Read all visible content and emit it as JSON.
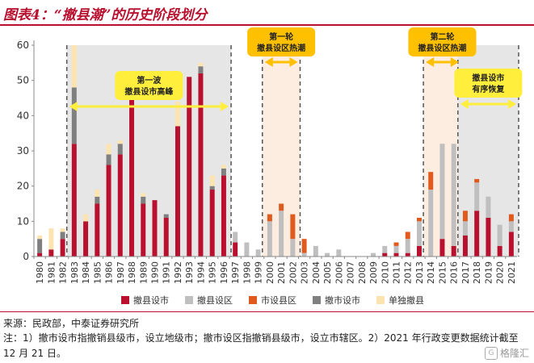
{
  "title": "图表4：“撤县潮”的历史阶段划分",
  "chart_data": {
    "type": "bar",
    "stacked": true,
    "categories": [
      "1980",
      "1981",
      "1982",
      "1983",
      "1984",
      "1985",
      "1986",
      "1987",
      "1988",
      "1989",
      "1990",
      "1991",
      "1992",
      "1993",
      "1994",
      "1995",
      "1996",
      "1997",
      "1998",
      "1999",
      "2000",
      "2001",
      "2002",
      "2003",
      "2004",
      "2005",
      "2006",
      "2007",
      "2008",
      "2009",
      "2010",
      "2011",
      "2012",
      "2013",
      "2014",
      "2015",
      "2016",
      "2017",
      "2018",
      "2019",
      "2020",
      "2021"
    ],
    "ylim": [
      0,
      60
    ],
    "yticks": [
      0,
      10,
      20,
      30,
      40,
      50,
      60
    ],
    "series": [
      {
        "name": "撤县设市",
        "color": "#b8102e",
        "values": [
          1,
          2,
          5,
          32,
          10,
          15,
          26,
          29,
          45,
          15,
          16,
          11,
          37,
          51,
          52,
          19,
          23,
          4,
          0,
          0,
          0,
          0,
          0,
          0,
          0,
          0,
          0,
          0,
          0,
          0,
          1,
          1,
          1,
          3,
          0,
          5,
          3,
          6,
          13,
          11,
          3,
          7
        ]
      },
      {
        "name": "撤县设区",
        "color": "#bfbfbf",
        "values": [
          0,
          0,
          0,
          0,
          0,
          0,
          0,
          0,
          0,
          0,
          0,
          0,
          0,
          0,
          0,
          0,
          0,
          3,
          4,
          2,
          10,
          13,
          5,
          1,
          3,
          1,
          2,
          0,
          0,
          1,
          2,
          2,
          4,
          7,
          19,
          27,
          29,
          4,
          8,
          6,
          6,
          3
        ]
      },
      {
        "name": "市设县区",
        "color": "#e05a1e",
        "values": [
          0,
          0,
          0,
          0,
          0,
          0,
          0,
          0,
          0,
          0,
          0,
          0,
          0,
          0,
          0,
          0,
          0,
          0,
          0,
          0,
          2,
          2,
          7,
          4,
          0,
          0,
          0,
          0,
          0,
          0,
          0,
          1,
          2,
          1,
          5,
          0,
          0,
          3,
          1,
          0,
          0,
          2
        ]
      },
      {
        "name": "撤市设市",
        "color": "#7f7f7f",
        "values": [
          4,
          0,
          2,
          16,
          0,
          2,
          3,
          3,
          0,
          2,
          0,
          1,
          0,
          0,
          2,
          1,
          2,
          0,
          0,
          0,
          0,
          0,
          0,
          0,
          0,
          0,
          0,
          0,
          0,
          0,
          0,
          0,
          0,
          0,
          0,
          0,
          0,
          0,
          0,
          0,
          0,
          0
        ]
      },
      {
        "name": "单独撤县",
        "color": "#fce4b0",
        "values": [
          1,
          6,
          1,
          12,
          2,
          2,
          3,
          1,
          2,
          1,
          0,
          0,
          7,
          0,
          1,
          3,
          1,
          0,
          0,
          0,
          0,
          0,
          0,
          0,
          0,
          0,
          0,
          0,
          0,
          0,
          0,
          0,
          0,
          0,
          0,
          0,
          0,
          0,
          0,
          0,
          0,
          0
        ]
      }
    ],
    "phases": [
      {
        "label": "第一波|撤县设市高峰",
        "from": "1983",
        "to": "1996",
        "fill": "#e6e6e6",
        "callout": "yellow"
      },
      {
        "label": "第一轮|撤县设区热潮",
        "from": "2000",
        "to": "2002",
        "fill": "#fdece0",
        "callout": "orange"
      },
      {
        "label": "第二轮|撤县设区热潮",
        "from": "2014",
        "to": "2016",
        "fill": "#fdece0",
        "callout": "orange"
      },
      {
        "label": "撤县设市|有序恢复",
        "from": "2017",
        "to": "2021",
        "fill": "#e6e6e6",
        "callout": "yellow"
      }
    ]
  },
  "source": "来源：民政部，中泰证券研究所",
  "note": "注：1）撤市设市指撤销县级市，设立地级市；撤市设区指撤销县级市，设立市辖区。2）2021 年行政变更数据统计截至 12 月 21 日。",
  "watermark": "格隆汇"
}
